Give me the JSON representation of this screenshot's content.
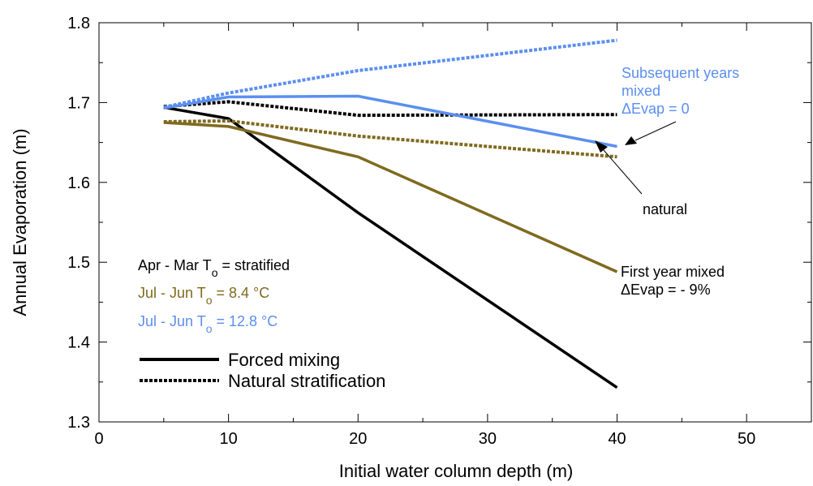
{
  "chart_data": {
    "type": "line",
    "xlabel": "Initial water column depth (m)",
    "ylabel": "Annual Evaporation (m)",
    "xlim": [
      0,
      55
    ],
    "ylim": [
      1.3,
      1.8
    ],
    "x_ticks": [
      0,
      10,
      20,
      30,
      40,
      50
    ],
    "y_ticks": [
      1.3,
      1.4,
      1.5,
      1.6,
      1.7,
      1.8
    ],
    "x_tick_labels": [
      "0",
      "10",
      "20",
      "30",
      "40",
      "50"
    ],
    "y_tick_labels": [
      "1.3",
      "1.4",
      "1.5",
      "1.6",
      "1.7",
      "1.8"
    ],
    "grid": false,
    "colors": {
      "black": "#000000",
      "olive": "#7f6a1f",
      "blue": "#5b8ff0"
    },
    "series": [
      {
        "key": "black_forced",
        "color": "#000000",
        "style": "solid",
        "x": [
          5,
          10,
          20,
          40
        ],
        "y": [
          1.694,
          1.68,
          1.562,
          1.343
        ]
      },
      {
        "key": "black_natural",
        "color": "#000000",
        "style": "dashed",
        "x": [
          5,
          10,
          20,
          40
        ],
        "y": [
          1.695,
          1.701,
          1.684,
          1.685
        ]
      },
      {
        "key": "olive_forced",
        "color": "#7f6a1f",
        "style": "solid",
        "x": [
          5,
          10,
          20,
          40
        ],
        "y": [
          1.675,
          1.67,
          1.632,
          1.488
        ]
      },
      {
        "key": "olive_natural",
        "color": "#7f6a1f",
        "style": "dashed",
        "x": [
          5,
          10,
          20,
          40
        ],
        "y": [
          1.676,
          1.677,
          1.658,
          1.632
        ]
      },
      {
        "key": "blue_forced",
        "color": "#5b8ff0",
        "style": "solid",
        "x": [
          5,
          10,
          20,
          40
        ],
        "y": [
          1.693,
          1.707,
          1.708,
          1.645
        ]
      },
      {
        "key": "blue_natural",
        "color": "#5b8ff0",
        "style": "dashed",
        "x": [
          5,
          10,
          20,
          40
        ],
        "y": [
          1.694,
          1.712,
          1.74,
          1.778
        ]
      }
    ],
    "legend": {
      "case_lines": [
        {
          "prefix": "Apr - Mar T",
          "sub": "o",
          "suffix": " = stratified",
          "color": "#000000"
        },
        {
          "prefix": "Jul - Jun T",
          "sub": "o",
          "suffix": " = 8.4 °C",
          "color": "#7f6a1f"
        },
        {
          "prefix": "Jul - Jun T",
          "sub": "o",
          "suffix": " = 12.8 °C",
          "color": "#5b8ff0"
        }
      ],
      "line_styles": [
        {
          "label": "Forced mixing",
          "style": "solid"
        },
        {
          "label": "Natural stratification",
          "style": "dashed"
        }
      ]
    },
    "annotations": {
      "subsequent": {
        "lines": [
          "Subsequent years",
          "mixed",
          "ΔEvap = 0"
        ],
        "color": "#5b8ff0"
      },
      "natural": {
        "text": "natural",
        "color": "#000000"
      },
      "first_year": {
        "lines": [
          "First year mixed",
          "ΔEvap = - 9%"
        ],
        "color": "#000000"
      }
    }
  }
}
